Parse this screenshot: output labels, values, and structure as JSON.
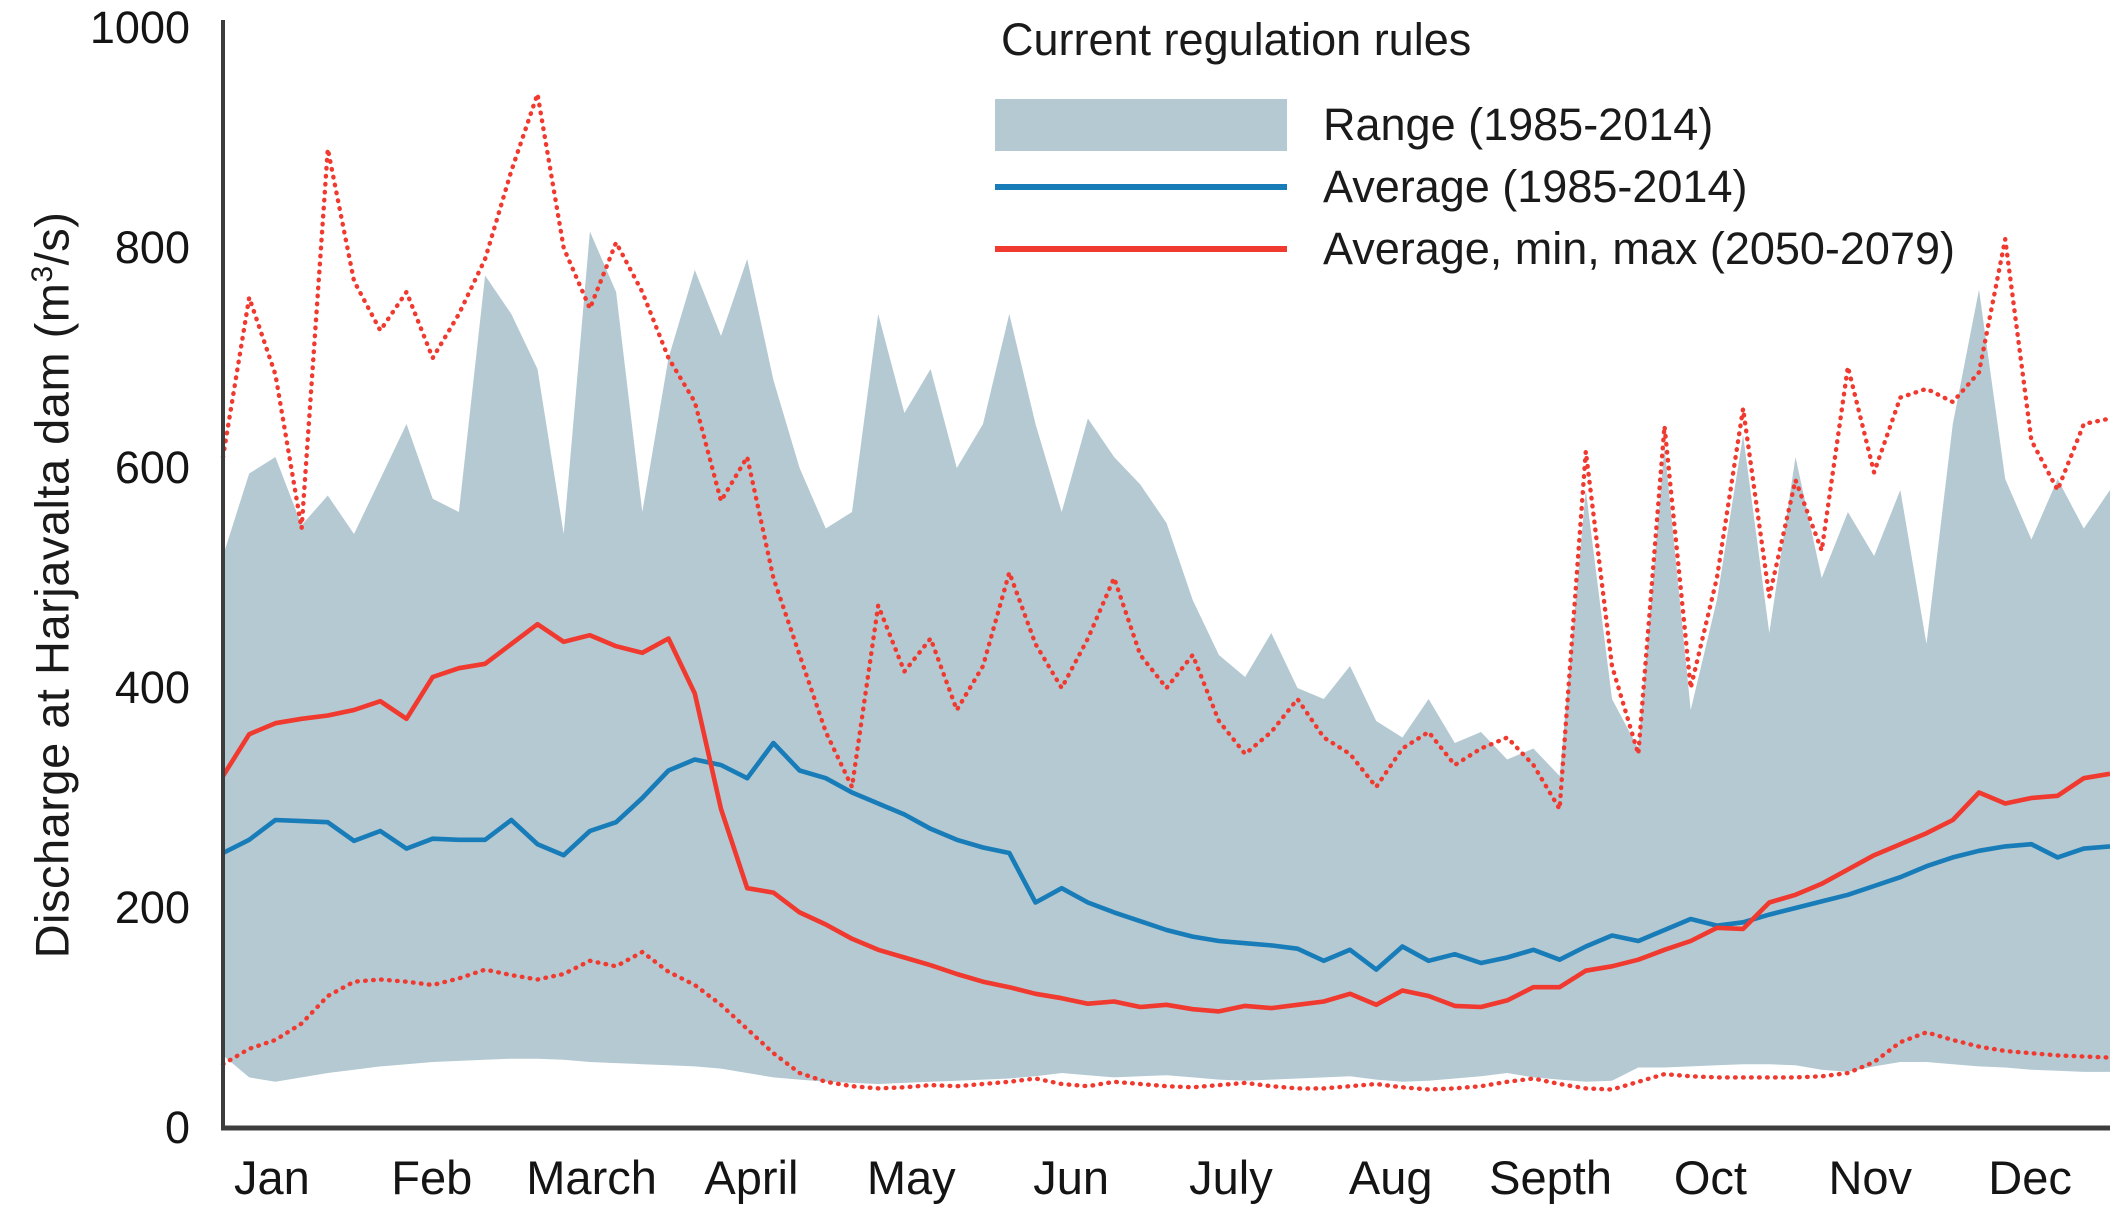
{
  "figure": {
    "y_axis": {
      "title_prefix": "Discharge at Harjavalta dam (m",
      "title_sup": "3",
      "title_suffix": "/s)",
      "ticks": [
        0,
        200,
        400,
        600,
        800,
        1000
      ]
    },
    "x_axis": {
      "months": [
        "Jan",
        "Feb",
        "March",
        "April",
        "May",
        "Jun",
        "July",
        "Aug",
        "Septh",
        "Oct",
        "Nov",
        "Dec"
      ]
    },
    "legend": {
      "title": "Current regulation rules",
      "items": [
        {
          "label": "Range (1985-2014)",
          "swatch": "range-fill"
        },
        {
          "label": "Average (1985-2014)",
          "swatch": "blue-line"
        },
        {
          "label": "Average, min, max (2050-2079)",
          "swatch": "red-line"
        }
      ]
    },
    "colors": {
      "range_fill": "#b4c9d2",
      "average_line": "#187cb8",
      "future_line": "#f0392f",
      "axis": "#3d3d3d",
      "text": "#1a1a1a"
    }
  },
  "chart_data": {
    "type": "area",
    "title": "Current regulation rules",
    "xlabel": "",
    "ylabel": "Discharge at Harjavalta dam (m3/s)",
    "ylim": [
      0,
      1000
    ],
    "grid": false,
    "legend_position": "top-center",
    "x_unit": "73 evenly spaced samples, Jan 1 - Dec 31",
    "categories_months": [
      "Jan",
      "Feb",
      "March",
      "April",
      "May",
      "Jun",
      "July",
      "Aug",
      "Septh",
      "Oct",
      "Nov",
      "Dec"
    ],
    "series": [
      {
        "name": "Range (1985-2014)",
        "type": "band",
        "color": "range_fill",
        "upper": [
          520,
          595,
          610,
          548,
          575,
          540,
          590,
          640,
          572,
          560,
          775,
          740,
          690,
          540,
          815,
          760,
          560,
          700,
          780,
          720,
          790,
          680,
          600,
          545,
          560,
          740,
          650,
          690,
          600,
          640,
          740,
          640,
          560,
          645,
          610,
          585,
          550,
          480,
          430,
          410,
          450,
          400,
          390,
          420,
          370,
          355,
          390,
          350,
          360,
          335,
          345,
          320,
          580,
          390,
          345,
          620,
          380,
          480,
          630,
          450,
          610,
          500,
          560,
          520,
          580,
          440,
          640,
          762,
          590,
          535,
          590,
          545,
          580
        ],
        "lower": [
          66,
          46,
          42,
          46,
          50,
          53,
          56,
          58,
          60,
          61,
          62,
          63,
          63,
          62,
          60,
          59,
          58,
          57,
          56,
          54,
          50,
          46,
          44,
          42,
          41,
          40,
          41,
          42,
          43,
          44,
          45,
          47,
          50,
          48,
          46,
          47,
          48,
          46,
          44,
          43,
          44,
          45,
          46,
          47,
          44,
          42,
          43,
          45,
          47,
          50,
          46,
          44,
          42,
          43,
          55,
          55,
          56,
          57,
          58,
          58,
          57,
          53,
          51,
          56,
          60,
          60,
          58,
          56,
          55,
          53,
          52,
          51,
          51
        ]
      },
      {
        "name": "Average (1985-2014)",
        "type": "line",
        "style": "solid",
        "color": "average_line",
        "values": [
          250,
          262,
          280,
          279,
          278,
          261,
          270,
          254,
          263,
          262,
          262,
          280,
          258,
          248,
          270,
          278,
          300,
          325,
          335,
          330,
          318,
          350,
          325,
          318,
          305,
          295,
          285,
          272,
          262,
          255,
          250,
          205,
          218,
          205,
          196,
          188,
          180,
          174,
          170,
          168,
          166,
          163,
          152,
          162,
          144,
          165,
          152,
          158,
          150,
          155,
          162,
          153,
          165,
          175,
          170,
          180,
          190,
          184,
          187,
          194,
          200,
          206,
          212,
          220,
          228,
          238,
          246,
          252,
          256,
          258,
          246,
          254,
          256
        ]
      },
      {
        "name": "Average (2050-2079)",
        "type": "line",
        "style": "solid",
        "color": "future_line",
        "values": [
          320,
          358,
          368,
          372,
          375,
          380,
          388,
          372,
          410,
          418,
          422,
          440,
          458,
          442,
          448,
          438,
          432,
          445,
          395,
          290,
          218,
          214,
          196,
          185,
          172,
          162,
          155,
          148,
          140,
          133,
          128,
          122,
          118,
          113,
          115,
          110,
          112,
          108,
          106,
          111,
          109,
          112,
          115,
          122,
          112,
          125,
          120,
          111,
          110,
          116,
          128,
          128,
          143,
          147,
          153,
          162,
          170,
          182,
          181,
          205,
          212,
          222,
          235,
          248,
          258,
          268,
          280,
          305,
          295,
          300,
          302,
          318,
          322
        ]
      },
      {
        "name": "Max (2050-2079)",
        "type": "line",
        "style": "dotted",
        "color": "future_line",
        "values": [
          610,
          755,
          685,
          545,
          890,
          770,
          725,
          760,
          700,
          740,
          790,
          870,
          940,
          800,
          745,
          805,
          760,
          700,
          660,
          570,
          610,
          500,
          430,
          360,
          310,
          475,
          415,
          445,
          380,
          420,
          505,
          440,
          400,
          445,
          500,
          430,
          400,
          430,
          370,
          340,
          360,
          390,
          355,
          340,
          310,
          345,
          360,
          330,
          345,
          355,
          330,
          290,
          615,
          420,
          340,
          638,
          400,
          500,
          654,
          483,
          589,
          525,
          692,
          596,
          664,
          672,
          660,
          687,
          808,
          625,
          580,
          640,
          645
        ]
      },
      {
        "name": "Min (2050-2079)",
        "type": "line",
        "style": "dotted",
        "color": "future_line",
        "values": [
          58,
          72,
          80,
          95,
          120,
          133,
          135,
          133,
          130,
          136,
          144,
          139,
          135,
          140,
          152,
          147,
          160,
          142,
          130,
          112,
          90,
          68,
          50,
          42,
          38,
          36,
          37,
          39,
          38,
          40,
          42,
          45,
          40,
          38,
          42,
          40,
          38,
          37,
          39,
          41,
          38,
          36,
          36,
          38,
          40,
          37,
          35,
          36,
          38,
          42,
          45,
          40,
          36,
          35,
          42,
          49,
          47,
          46,
          46,
          46,
          46,
          47,
          50,
          60,
          78,
          87,
          80,
          74,
          70,
          68,
          66,
          65,
          64
        ]
      }
    ]
  }
}
